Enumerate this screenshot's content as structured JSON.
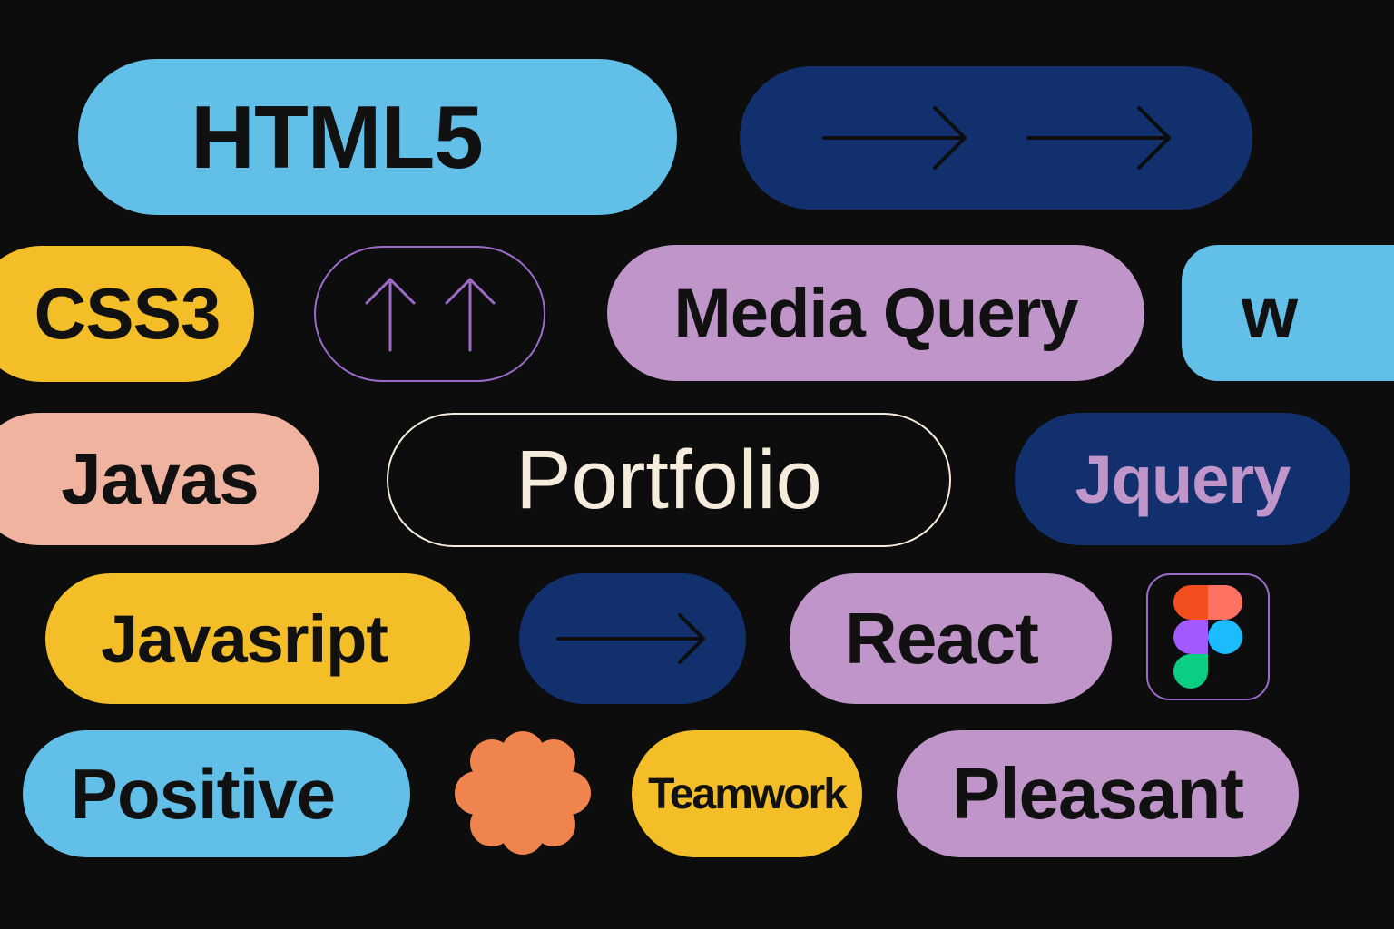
{
  "colors": {
    "background": "#0d0d0e",
    "sky": "#62bfe8",
    "navy": "#13306e",
    "yellow": "#f4be28",
    "lavender": "#c096ca",
    "peach": "#efb3a0",
    "orange": "#f0844e",
    "cream": "#f6ecdc",
    "purple": "#9c6bc9"
  },
  "tags": {
    "html5": "HTML5",
    "css3": "CSS3",
    "media_query": "Media Query",
    "w": "w",
    "javas": "Javas",
    "portfolio": "Portfolio",
    "jquery": "Jquery",
    "javasript": "Javasript",
    "react": "React",
    "positive": "Positive",
    "teamwork": "Teamwork",
    "pleasant": "Pleasant"
  },
  "icons": {
    "double_right_arrow": "arrow-right-icon",
    "double_up_arrow": "arrow-up-icon",
    "single_right_arrow": "arrow-right-icon",
    "figma_logo": "figma-logo-icon",
    "scalloped_badge": "flower-badge-icon"
  }
}
